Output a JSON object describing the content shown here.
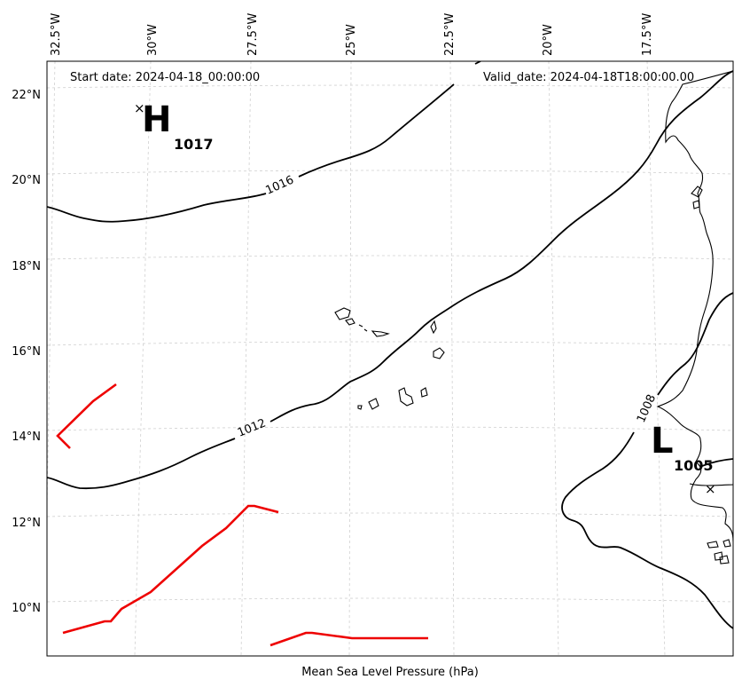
{
  "map": {
    "start_date": "Start date: 2024-04-18_00:00:00",
    "valid_date": "Valid_date: 2024-04-18T18:00:00.00",
    "bottom_label": "Mean Sea Level Pressure (hPa)",
    "lon_labels": [
      "32.5°W",
      "30°W",
      "27.5°W",
      "25°W",
      "22.5°W",
      "20°W",
      "17.5°W"
    ],
    "lat_labels": [
      "22°N",
      "20°N",
      "18°N",
      "16°N",
      "14°N",
      "12°N",
      "10°N"
    ],
    "contour_labels": [
      "1016",
      "1012",
      "1008"
    ],
    "high": {
      "letter": "H",
      "value": "1017"
    },
    "low": {
      "letter": "L",
      "value": "1005"
    },
    "colors": {
      "contour": "#000000",
      "front": "#ee0000",
      "grid": "#d0d0d0",
      "coast": "#000000"
    }
  }
}
